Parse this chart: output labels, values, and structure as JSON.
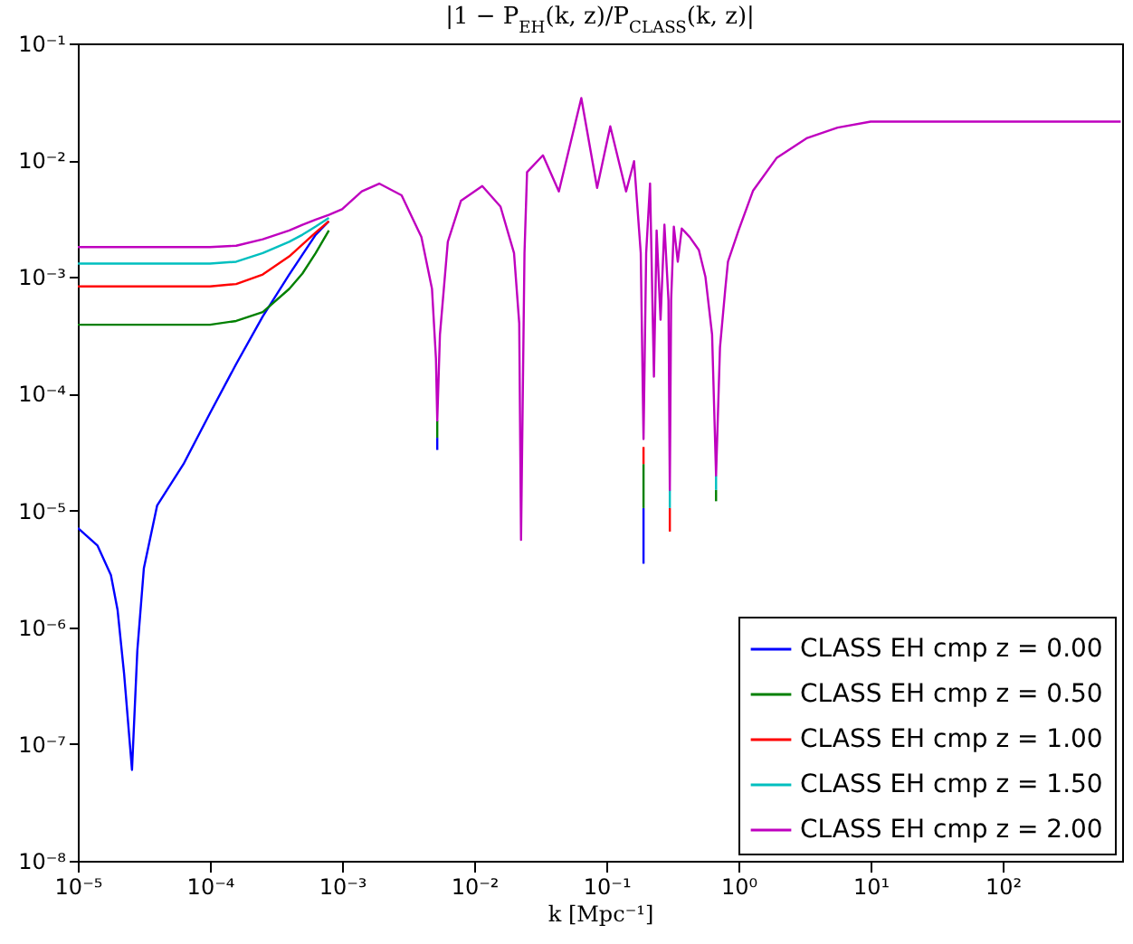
{
  "chart_data": {
    "type": "line",
    "title": "|1 − P$_{EH}$(k, z)/P$_{CLASS}$(k, z)|",
    "xlabel": "k [Mpc⁻¹]",
    "log": "xy",
    "grid": false,
    "legend": "bottom right",
    "line_style": "solid",
    "marker": "none",
    "x": [
      1e-05,
      1.41e-05,
      1.78e-05,
      2e-05,
      2.24e-05,
      2.57e-05,
      2.82e-05,
      3.16e-05,
      3.98e-05,
      6.31e-05,
      0.0001,
      0.000158,
      0.000251,
      0.000398,
      0.000501,
      0.000631,
      0.000794,
      0.001,
      0.00141,
      0.00191,
      0.00282,
      0.00398,
      0.00479,
      0.00513,
      0.00525,
      0.0055,
      0.00631,
      0.00794,
      0.0115,
      0.0158,
      0.02,
      0.0219,
      0.0226,
      0.024,
      0.0251,
      0.0331,
      0.0437,
      0.0646,
      0.0851,
      0.107,
      0.141,
      0.162,
      0.182,
      0.191,
      0.2,
      0.214,
      0.229,
      0.24,
      0.257,
      0.275,
      0.295,
      0.302,
      0.309,
      0.324,
      0.347,
      0.372,
      0.427,
      0.501,
      0.562,
      0.631,
      0.676,
      0.724,
      0.794,
      0.832,
      1,
      1.29,
      1.95,
      3.31,
      5.62,
      10,
      780
    ],
    "series": [
      {
        "name": "CLASS EH cmp z = 0.00",
        "color": "#0000ff",
        "x": [
          1e-05,
          1.41e-05,
          1.78e-05,
          2e-05,
          2.24e-05,
          2.57e-05,
          2.82e-05,
          3.16e-05,
          3.98e-05,
          6.31e-05,
          0.0001,
          0.000158,
          0.000251,
          0.000398,
          0.000501,
          0.000631,
          0.000794,
          0.00525,
          0.00525,
          0.191,
          0.191
        ],
        "values": [
          7.1e-06,
          5e-06,
          2.8e-06,
          1.4e-06,
          4e-07,
          6e-08,
          6.3e-07,
          3.2e-06,
          1.1e-05,
          2.5e-05,
          6.8e-05,
          0.00018,
          0.00046,
          0.00105,
          0.00155,
          0.0023,
          0.003,
          4.2e-05,
          3.3e-05,
          1.05e-05,
          3.5e-06
        ]
      },
      {
        "name": "CLASS EH cmp z = 0.50",
        "color": "#008000",
        "x": [
          1e-05,
          1.41e-05,
          1.78e-05,
          2e-05,
          2.24e-05,
          2.57e-05,
          2.82e-05,
          3.16e-05,
          3.98e-05,
          6.31e-05,
          0.0001,
          0.000158,
          0.000251,
          0.000398,
          0.000501,
          0.000631,
          0.000794,
          0.00525,
          0.00525,
          0.191,
          0.191,
          0.676,
          0.676
        ],
        "values": [
          0.00039,
          0.00039,
          0.00039,
          0.00039,
          0.00039,
          0.00039,
          0.00039,
          0.00039,
          0.00039,
          0.00039,
          0.00039,
          0.00042,
          0.0005,
          0.00079,
          0.00107,
          0.0016,
          0.0025,
          5.9e-05,
          4.2e-05,
          2.5e-05,
          1.05e-05,
          1.5e-05,
          1.2e-05
        ]
      },
      {
        "name": "CLASS EH cmp z = 1.00",
        "color": "#ff0000",
        "x": [
          1e-05,
          1.41e-05,
          1.78e-05,
          2e-05,
          2.24e-05,
          2.57e-05,
          2.82e-05,
          3.16e-05,
          3.98e-05,
          6.31e-05,
          0.0001,
          0.000158,
          0.000251,
          0.000398,
          0.000501,
          0.000631,
          0.000794,
          0.191,
          0.191,
          0.302,
          0.302
        ],
        "values": [
          0.00083,
          0.00083,
          0.00083,
          0.00083,
          0.00083,
          0.00083,
          0.00083,
          0.00083,
          0.00083,
          0.00083,
          0.00083,
          0.00087,
          0.00105,
          0.0015,
          0.0019,
          0.0024,
          0.003,
          3.5e-05,
          2.5e-05,
          1.05e-05,
          6.6e-06
        ]
      },
      {
        "name": "CLASS EH cmp z = 1.50",
        "color": "#00bfbf",
        "x": [
          1e-05,
          1.41e-05,
          1.78e-05,
          2e-05,
          2.24e-05,
          2.57e-05,
          2.82e-05,
          3.16e-05,
          3.98e-05,
          6.31e-05,
          0.0001,
          0.000158,
          0.000251,
          0.000398,
          0.000501,
          0.000631,
          0.000794,
          0.302,
          0.302,
          0.676,
          0.676
        ],
        "values": [
          0.0013,
          0.0013,
          0.0013,
          0.0013,
          0.0013,
          0.0013,
          0.0013,
          0.0013,
          0.0013,
          0.0013,
          0.0013,
          0.00135,
          0.0016,
          0.002,
          0.0023,
          0.0027,
          0.0032,
          1.5e-05,
          1.05e-05,
          2e-05,
          1.5e-05
        ]
      },
      {
        "name": "CLASS EH cmp z = 2.00",
        "color": "#bf00bf",
        "values": [
          0.0018,
          0.0018,
          0.0018,
          0.0018,
          0.0018,
          0.0018,
          0.0018,
          0.0018,
          0.0018,
          0.0018,
          0.0018,
          0.00185,
          0.0021,
          0.0025,
          0.0028,
          0.0031,
          0.0034,
          0.0038,
          0.0054,
          0.0063,
          0.005,
          0.0022,
          0.00079,
          0.0002,
          5.9e-05,
          0.00032,
          0.002,
          0.0045,
          0.006,
          0.004,
          0.0016,
          0.0004,
          5.6e-06,
          0.0016,
          0.0079,
          0.011,
          0.0054,
          0.034,
          0.0058,
          0.0195,
          0.0054,
          0.0098,
          0.0016,
          4.1e-05,
          0.0016,
          0.0063,
          0.00014,
          0.0025,
          0.00043,
          0.0028,
          0.00063,
          1.5e-05,
          0.00063,
          0.0027,
          0.00135,
          0.0026,
          0.0022,
          0.0017,
          0.001,
          0.00032,
          2e-05,
          0.00025,
          0.00079,
          0.00135,
          0.0025,
          0.0055,
          0.0105,
          0.0155,
          0.019,
          0.0214,
          0.0214
        ]
      }
    ],
    "xlim": [
      1e-05,
      800
    ],
    "ylim": [
      1e-08,
      0.1
    ],
    "xticks": [
      {
        "value": 1e-05,
        "label": "10⁻⁵"
      },
      {
        "value": 0.0001,
        "label": "10⁻⁴"
      },
      {
        "value": 0.001,
        "label": "10⁻³"
      },
      {
        "value": 0.01,
        "label": "10⁻²"
      },
      {
        "value": 0.1,
        "label": "10⁻¹"
      },
      {
        "value": 1,
        "label": "10⁰"
      },
      {
        "value": 10,
        "label": "10¹"
      },
      {
        "value": 100,
        "label": "10²"
      }
    ],
    "yticks": [
      {
        "value": 1e-08,
        "label": "10⁻⁸"
      },
      {
        "value": 1e-07,
        "label": "10⁻⁷"
      },
      {
        "value": 1e-06,
        "label": "10⁻⁶"
      },
      {
        "value": 1e-05,
        "label": "10⁻⁵"
      },
      {
        "value": 0.0001,
        "label": "10⁻⁴"
      },
      {
        "value": 0.001,
        "label": "10⁻³"
      },
      {
        "value": 0.01,
        "label": "10⁻²"
      },
      {
        "value": 0.1,
        "label": "10⁻¹"
      }
    ]
  }
}
